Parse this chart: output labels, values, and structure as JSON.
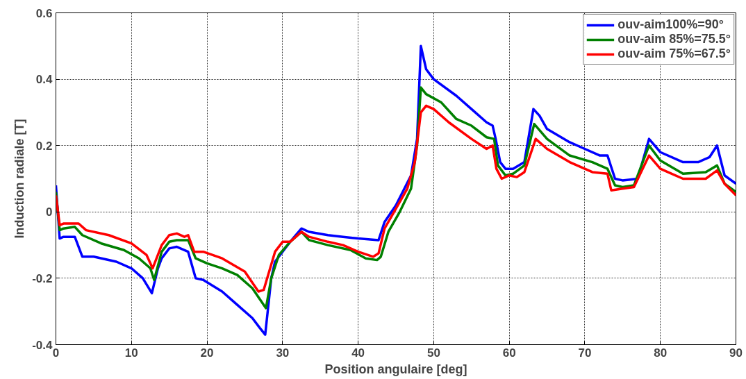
{
  "chart_data": {
    "type": "line",
    "xlabel": "Position angulaire [deg]",
    "ylabel": "Induction radiale [T]",
    "xlim": [
      0,
      90
    ],
    "ylim": [
      -0.4,
      0.6
    ],
    "xticks": [
      0,
      10,
      20,
      30,
      40,
      50,
      60,
      70,
      80,
      90
    ],
    "yticks": [
      -0.4,
      -0.2,
      0,
      0.2,
      0.4,
      0.6
    ],
    "grid": true,
    "legend": "top right",
    "line_style": "solid",
    "marker": "none",
    "series": [
      {
        "name": "ouv-aim100%=90°",
        "color": "#0000ff",
        "x": [
          0,
          0.5,
          1,
          2.5,
          3.5,
          5,
          8,
          10,
          11.5,
          12.7,
          13.5,
          14,
          15,
          16,
          17.5,
          18.5,
          19.5,
          22,
          24,
          26,
          27,
          27.7,
          28.5,
          29,
          30,
          31,
          32.5,
          33.5,
          36,
          38,
          40,
          42.7,
          43.5,
          45,
          46,
          47,
          47.8,
          48.3,
          49,
          50,
          53,
          55,
          57,
          57.8,
          58.2,
          58.8,
          59.5,
          60.5,
          62,
          63.2,
          64,
          65,
          68,
          70,
          72,
          73,
          74,
          75,
          77,
          78.5,
          80,
          83,
          85,
          86.5,
          87.5,
          88.5,
          90
        ],
        "values": [
          0.08,
          -0.08,
          -0.075,
          -0.075,
          -0.135,
          -0.135,
          -0.15,
          -0.17,
          -0.2,
          -0.245,
          -0.17,
          -0.14,
          -0.11,
          -0.105,
          -0.12,
          -0.2,
          -0.205,
          -0.24,
          -0.28,
          -0.32,
          -0.35,
          -0.37,
          -0.2,
          -0.15,
          -0.12,
          -0.09,
          -0.05,
          -0.06,
          -0.07,
          -0.075,
          -0.08,
          -0.085,
          -0.03,
          0.02,
          0.065,
          0.11,
          0.22,
          0.5,
          0.43,
          0.4,
          0.35,
          0.31,
          0.27,
          0.26,
          0.22,
          0.15,
          0.13,
          0.13,
          0.15,
          0.31,
          0.29,
          0.25,
          0.21,
          0.19,
          0.17,
          0.17,
          0.1,
          0.095,
          0.1,
          0.22,
          0.18,
          0.15,
          0.15,
          0.165,
          0.2,
          0.11,
          0.085
        ]
      },
      {
        "name": "ouv-aim 85%=75.5°",
        "color": "#008000",
        "x": [
          0,
          0.5,
          1,
          2.5,
          3.5,
          6,
          9,
          11,
          12.5,
          13,
          14,
          15,
          16,
          17.5,
          18.5,
          20,
          22,
          24,
          26,
          27.8,
          28.5,
          29.5,
          31,
          32.5,
          33.5,
          36,
          39,
          41,
          42.5,
          43,
          44,
          45.5,
          47,
          47.8,
          48.3,
          49,
          51,
          53,
          55,
          57,
          58,
          58.5,
          59.5,
          60.5,
          62,
          63.3,
          65,
          68,
          71,
          73,
          74,
          75,
          76.5,
          78.5,
          80,
          83,
          86,
          87.5,
          88.5,
          90
        ],
        "values": [
          0.06,
          -0.055,
          -0.05,
          -0.045,
          -0.07,
          -0.095,
          -0.115,
          -0.14,
          -0.17,
          -0.205,
          -0.12,
          -0.09,
          -0.085,
          -0.085,
          -0.14,
          -0.155,
          -0.17,
          -0.19,
          -0.23,
          -0.29,
          -0.2,
          -0.13,
          -0.09,
          -0.06,
          -0.085,
          -0.1,
          -0.115,
          -0.14,
          -0.145,
          -0.135,
          -0.06,
          0.0,
          0.07,
          0.2,
          0.375,
          0.355,
          0.33,
          0.28,
          0.26,
          0.225,
          0.22,
          0.14,
          0.11,
          0.115,
          0.14,
          0.265,
          0.22,
          0.17,
          0.15,
          0.13,
          0.08,
          0.075,
          0.08,
          0.2,
          0.155,
          0.115,
          0.12,
          0.14,
          0.085,
          0.06
        ]
      },
      {
        "name": "ouv-aim 75%=67.5°",
        "color": "#ff0000",
        "x": [
          0,
          0.5,
          1,
          3,
          4,
          7,
          10,
          12,
          12.8,
          14,
          15,
          16,
          17,
          17.5,
          18.3,
          19.5,
          22,
          25,
          26.8,
          27.5,
          29,
          30,
          31,
          32.5,
          33.5,
          36,
          38,
          40,
          42,
          42.7,
          43.5,
          45,
          46.5,
          47.5,
          48.3,
          49,
          50,
          52,
          55,
          57,
          57.8,
          58.3,
          59,
          60,
          61,
          62,
          63.5,
          65,
          68,
          71,
          73,
          73.5,
          75,
          76.5,
          78.5,
          80,
          83,
          86,
          87.5,
          88.5,
          90
        ],
        "values": [
          0.05,
          -0.04,
          -0.035,
          -0.035,
          -0.055,
          -0.07,
          -0.095,
          -0.13,
          -0.17,
          -0.1,
          -0.07,
          -0.065,
          -0.075,
          -0.07,
          -0.12,
          -0.12,
          -0.14,
          -0.18,
          -0.24,
          -0.235,
          -0.12,
          -0.09,
          -0.09,
          -0.06,
          -0.075,
          -0.09,
          -0.1,
          -0.12,
          -0.135,
          -0.125,
          -0.05,
          0.01,
          0.07,
          0.15,
          0.3,
          0.32,
          0.31,
          0.27,
          0.22,
          0.19,
          0.2,
          0.13,
          0.1,
          0.11,
          0.105,
          0.12,
          0.22,
          0.19,
          0.15,
          0.12,
          0.115,
          0.065,
          0.07,
          0.075,
          0.17,
          0.13,
          0.1,
          0.1,
          0.125,
          0.085,
          0.05
        ]
      }
    ]
  }
}
